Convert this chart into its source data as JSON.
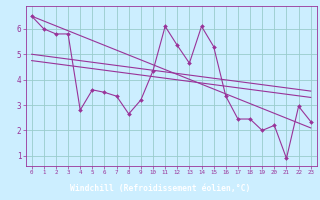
{
  "bg_color": "#cceeff",
  "line_color": "#993399",
  "grid_color": "#99cccc",
  "xlabel": "Windchill (Refroidissement éolien,°C)",
  "xlabel_bg": "#660066",
  "xlabel_fg": "#ffffff",
  "ylabel_ticks": [
    1,
    2,
    3,
    4,
    5,
    6
  ],
  "xlim": [
    -0.5,
    23.5
  ],
  "ylim": [
    0.6,
    6.9
  ],
  "xtick_labels": [
    "0",
    "1",
    "2",
    "3",
    "4",
    "5",
    "6",
    "7",
    "8",
    "9",
    "10",
    "11",
    "12",
    "13",
    "14",
    "15",
    "16",
    "17",
    "18",
    "19",
    "20",
    "21",
    "22",
    "23"
  ],
  "data_x": [
    0,
    1,
    2,
    3,
    4,
    5,
    6,
    7,
    8,
    9,
    10,
    11,
    12,
    13,
    14,
    15,
    16,
    17,
    18,
    19,
    20,
    21,
    22,
    23
  ],
  "data_y": [
    6.5,
    6.0,
    5.8,
    5.8,
    2.8,
    3.6,
    3.5,
    3.35,
    2.65,
    3.2,
    4.35,
    6.1,
    5.35,
    4.65,
    6.1,
    5.3,
    3.35,
    2.45,
    2.45,
    2.0,
    2.2,
    0.9,
    2.95,
    2.35
  ],
  "line1_x": [
    0,
    23
  ],
  "line1_y": [
    6.5,
    2.1
  ],
  "line2_x": [
    0,
    23
  ],
  "line2_y": [
    5.0,
    3.55
  ],
  "line3_x": [
    0,
    23
  ],
  "line3_y": [
    4.75,
    3.3
  ]
}
